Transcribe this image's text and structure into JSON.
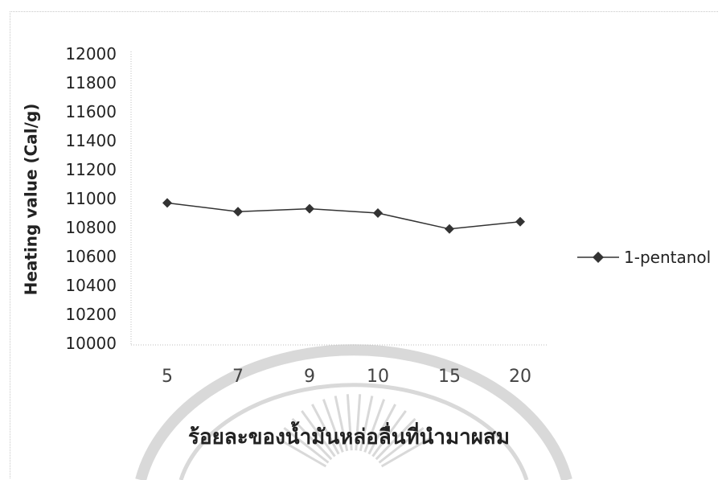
{
  "chart_data": {
    "type": "line",
    "title": "",
    "xlabel": "ร้อยละของน้ำมันหล่อลื่นที่นำมาผสม",
    "ylabel": "Heating value (Cal/g)",
    "categories": [
      "5",
      "7",
      "9",
      "10",
      "15",
      "20"
    ],
    "series": [
      {
        "name": "1-pentanol",
        "values": [
          10970,
          10910,
          10930,
          10900,
          10790,
          10840
        ],
        "color": "#333333",
        "marker": "diamond"
      }
    ],
    "ylim": [
      10000,
      12000
    ],
    "yticks": [
      "12000",
      "11800",
      "11600",
      "11400",
      "11200",
      "11000",
      "10800",
      "10600",
      "10400",
      "10200",
      "10000"
    ],
    "grid": false,
    "legend_position": "right"
  },
  "watermark": {
    "description": "university seal (decorative, faint)",
    "color": "#d9d9d9"
  }
}
